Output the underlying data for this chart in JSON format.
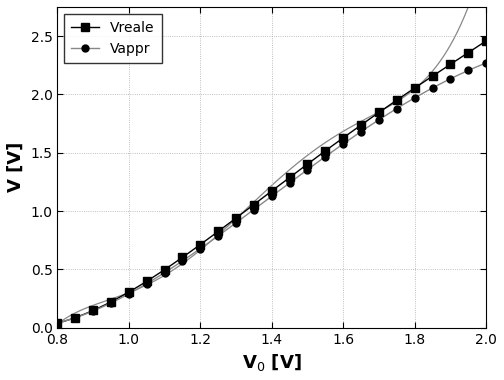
{
  "xlabel": "V$_0$ [V]",
  "ylabel": "V [V]",
  "xlim": [
    0.8,
    2.0
  ],
  "ylim": [
    0.0,
    2.75
  ],
  "xticks": [
    0.8,
    1.0,
    1.2,
    1.4,
    1.6,
    1.8,
    2.0
  ],
  "yticks": [
    0.0,
    0.5,
    1.0,
    1.5,
    2.0,
    2.5
  ],
  "legend_labels": [
    "Vreale",
    "Vappr"
  ],
  "n_markers": 25,
  "Vreale_points_V0": [
    0.8,
    0.85,
    0.9,
    0.95,
    1.0,
    1.1,
    1.2,
    1.4,
    1.6,
    1.8,
    2.0
  ],
  "Vreale_points_V": [
    0.03,
    0.09,
    0.16,
    0.22,
    0.3,
    0.5,
    0.7,
    1.18,
    1.63,
    2.05,
    2.46
  ],
  "Vappr_points_V0": [
    0.8,
    0.85,
    0.9,
    0.95,
    1.0,
    1.1,
    1.2,
    1.4,
    1.6,
    1.8,
    2.0
  ],
  "Vappr_points_V": [
    0.03,
    0.09,
    0.16,
    0.21,
    0.28,
    0.47,
    0.67,
    1.14,
    1.57,
    1.97,
    2.27
  ],
  "line_color_black": "#000000",
  "line_color_gray": "#888888",
  "background_color": "#ffffff"
}
